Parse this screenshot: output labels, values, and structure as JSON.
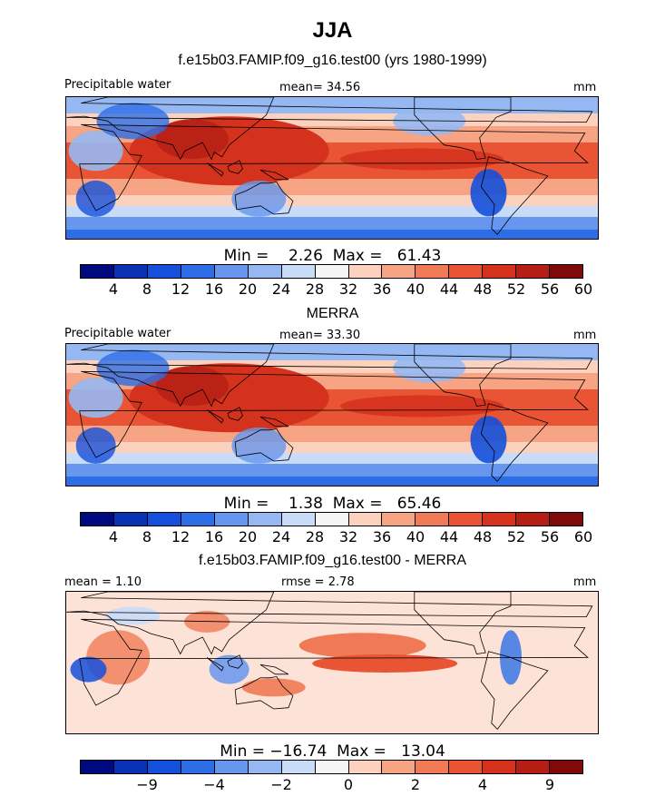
{
  "figure": {
    "season": "JJA",
    "subtitle": "f.e15b03.FAMIP.f09_g16.test00 (yrs 1980-1999)"
  },
  "panels": [
    {
      "title": "",
      "variable": "Precipitable water",
      "stat_left": "",
      "stat_center": "mean=  34.56",
      "units": "mm",
      "minmax": "Min =    2.26  Max =   61.43",
      "palette": [
        "#000a80",
        "#0a32b4",
        "#1450dc",
        "#2d6ee6",
        "#6696ee",
        "#96b8f2",
        "#c8dcf8",
        "#f5f5f5",
        "#fcd2be",
        "#f6a483",
        "#f07a55",
        "#e85434",
        "#d5321e",
        "#b41e14",
        "#800a0a"
      ],
      "tick_labels": [
        "4",
        "8",
        "12",
        "16",
        "20",
        "24",
        "28",
        "32",
        "36",
        "40",
        "44",
        "48",
        "52",
        "56",
        "60"
      ],
      "field": "model"
    },
    {
      "title": "MERRA",
      "variable": "Precipitable water",
      "stat_left": "",
      "stat_center": "mean=  33.30",
      "units": "mm",
      "minmax": "Min =    1.38  Max =   65.46",
      "palette": [
        "#000a80",
        "#0a32b4",
        "#1450dc",
        "#2d6ee6",
        "#6696ee",
        "#96b8f2",
        "#c8dcf8",
        "#f5f5f5",
        "#fcd2be",
        "#f6a483",
        "#f07a55",
        "#e85434",
        "#d5321e",
        "#b41e14",
        "#800a0a"
      ],
      "tick_labels": [
        "4",
        "8",
        "12",
        "16",
        "20",
        "24",
        "28",
        "32",
        "36",
        "40",
        "44",
        "48",
        "52",
        "56",
        "60"
      ],
      "field": "obs"
    },
    {
      "title": "f.e15b03.FAMIP.f09_g16.test00 - MERRA",
      "variable": "",
      "stat_left": "mean =    1.10",
      "stat_center": "rmse =    2.78",
      "units": "mm",
      "minmax": "Min = −16.74  Max =   13.04",
      "palette": [
        "#000a80",
        "#0a32b4",
        "#1450dc",
        "#2d6ee6",
        "#6696ee",
        "#96b8f2",
        "#c8dcf8",
        "#f5f5f5",
        "#fcd2be",
        "#f6a483",
        "#f07a55",
        "#e85434",
        "#d5321e",
        "#b41e14",
        "#800a0a"
      ],
      "tick_labels": [
        "",
        "−9",
        "",
        "−4",
        "",
        "−2",
        "",
        "0",
        "",
        "2",
        "",
        "4",
        "",
        "9",
        ""
      ],
      "field": "diff"
    }
  ]
}
